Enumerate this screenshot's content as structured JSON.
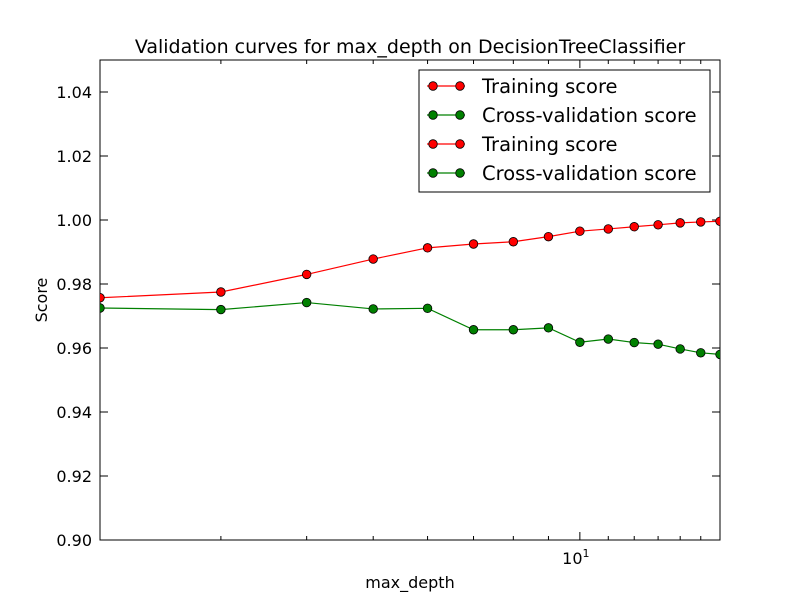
{
  "chart_data": {
    "type": "line",
    "title": "Validation curves for max_depth on DecisionTreeClassifier",
    "xlabel": "max_depth",
    "ylabel": "Score",
    "xscale": "log",
    "xlim": [
      2,
      16
    ],
    "ylim": [
      0.9,
      1.05
    ],
    "x": [
      2,
      3,
      4,
      5,
      6,
      7,
      8,
      9,
      10,
      11,
      12,
      13,
      14,
      15,
      16
    ],
    "x_ticks": [
      {
        "value": 10,
        "base": "10",
        "exp": "1"
      }
    ],
    "y_ticks": [
      {
        "value": 0.9,
        "label": "0.90"
      },
      {
        "value": 0.92,
        "label": "0.92"
      },
      {
        "value": 0.94,
        "label": "0.94"
      },
      {
        "value": 0.96,
        "label": "0.96"
      },
      {
        "value": 0.98,
        "label": "0.98"
      },
      {
        "value": 1.0,
        "label": "1.00"
      },
      {
        "value": 1.02,
        "label": "1.02"
      },
      {
        "value": 1.04,
        "label": "1.04"
      }
    ],
    "grid": false,
    "legend_position": "top-right",
    "legend": [
      {
        "label": "Training score",
        "color": "#ff0000"
      },
      {
        "label": "Cross-validation score",
        "color": "#008000"
      },
      {
        "label": "Training score",
        "color": "#ff0000"
      },
      {
        "label": "Cross-validation score",
        "color": "#008000"
      }
    ],
    "series": [
      {
        "name": "Training score",
        "color": "#ff0000",
        "values": [
          0.9757,
          0.9775,
          0.983,
          0.9878,
          0.9913,
          0.9925,
          0.9932,
          0.9948,
          0.9965,
          0.9972,
          0.9979,
          0.9985,
          0.9991,
          0.9994,
          0.9996
        ]
      },
      {
        "name": "Cross-validation score",
        "color": "#008000",
        "values": [
          0.9725,
          0.972,
          0.9742,
          0.9722,
          0.9724,
          0.9657,
          0.9657,
          0.9663,
          0.9618,
          0.9628,
          0.9617,
          0.9612,
          0.9597,
          0.9585,
          0.958
        ]
      }
    ]
  }
}
